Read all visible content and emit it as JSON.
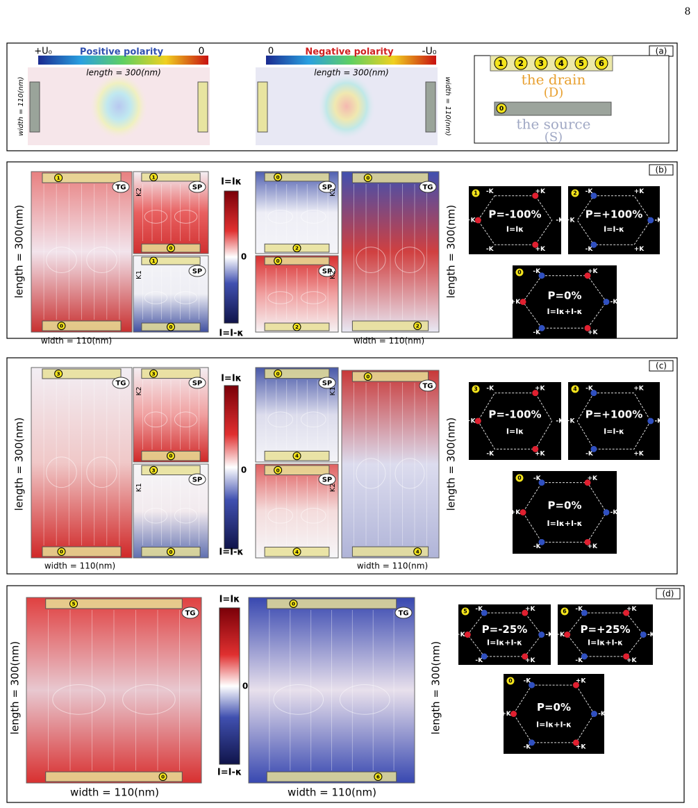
{
  "page_number": "8",
  "hex_vertex_labels": [
    "-K",
    "+K",
    "-K",
    "+K",
    "-K",
    "+K"
  ],
  "panel_a": {
    "label": "(a)",
    "positive": {
      "left": "+U₀",
      "title": "Positive polarity",
      "right": "0",
      "length": "length = 300(nm)",
      "width": "width = 110(nm)"
    },
    "negative": {
      "left": "0",
      "title": "Negative polarity",
      "right": "-U₀",
      "length": "length = 300(nm)",
      "width": "width = 110(nm)"
    },
    "legend": {
      "drain_contacts": [
        "1",
        "2",
        "3",
        "4",
        "5",
        "6"
      ],
      "drain": "the drain",
      "drain_abbr": "(D)",
      "source_contact": "0",
      "source": "the source",
      "source_abbr": "(S)"
    }
  },
  "panel_b": {
    "label": "(b)",
    "colorbar": {
      "top": "I=Iκ",
      "mid": "0",
      "bottom": "I=I-κ"
    },
    "length_labels": [
      "length = 300(nm)",
      "length = 300(nm)"
    ],
    "width_labels": [
      "width = 110(nm)",
      "width = 110(nm)"
    ],
    "fields": [
      {
        "top": "1",
        "bottom": "0",
        "tag": "TG",
        "colors": [
          "#e88080",
          "#f2e4ec",
          "#c83030"
        ]
      },
      {
        "top": "1",
        "bottom": "0",
        "tag": "SP",
        "k": "K2",
        "colors": [
          "#f4f0f4",
          "#e86060",
          "#d03030"
        ]
      },
      {
        "top": "1",
        "bottom": "0",
        "tag": "SP",
        "k": "K1",
        "colors": [
          "#f4f4f8",
          "#eeeef4",
          "#4050a0"
        ]
      },
      {
        "top": "0",
        "bottom": "2",
        "tag": "SP",
        "k": "K1",
        "colors": [
          "#5060b0",
          "#eeeef6",
          "#f4f4f8"
        ]
      },
      {
        "top": "0",
        "bottom": "2",
        "tag": "SP",
        "k": "K2",
        "colors": [
          "#d83030",
          "#f0a0a0",
          "#f6f2f4"
        ]
      },
      {
        "top": "0",
        "bottom": "2",
        "tag": "TG",
        "colors": [
          "#4050b0",
          "#d04040",
          "#e8e8f4"
        ]
      }
    ],
    "hexes": [
      {
        "contact": "1",
        "p": "P=-100%",
        "current": "I=Iκ",
        "dots": [
          null,
          "#e02030",
          null,
          "#e02030",
          null,
          "#e02030"
        ]
      },
      {
        "contact": "2",
        "p": "P=+100%",
        "current": "I=I-κ",
        "dots": [
          "#3050c0",
          null,
          "#3050c0",
          null,
          "#3050c0",
          null
        ]
      },
      {
        "contact": "0",
        "p": "P=0%",
        "current": "I=Iκ+I-κ",
        "dots": [
          "#3050c0",
          "#e02030",
          "#3050c0",
          "#e02030",
          "#3050c0",
          "#e02030"
        ]
      }
    ]
  },
  "panel_c": {
    "label": "(c)",
    "colorbar": {
      "top": "I=Iκ",
      "mid": "0",
      "bottom": "I=I-κ"
    },
    "length_labels": [
      "length = 300(nm)",
      "length = 300(nm)"
    ],
    "width_labels": [
      "width = 110(nm)",
      "width = 110(nm)"
    ],
    "fields": [
      {
        "top": "3",
        "bottom": "0",
        "tag": "TG",
        "colors": [
          "#f2eef4",
          "#f0c8c8",
          "#d02828"
        ]
      },
      {
        "top": "3",
        "bottom": "0",
        "tag": "SP",
        "k": "K2",
        "colors": [
          "#f4eef2",
          "#f0a0a0",
          "#d02828"
        ]
      },
      {
        "top": "3",
        "bottom": "0",
        "tag": "SP",
        "k": "K1",
        "colors": [
          "#f6f6f8",
          "#f2eaee",
          "#6070b0"
        ]
      },
      {
        "top": "0",
        "bottom": "4",
        "tag": "SP",
        "k": "K1",
        "colors": [
          "#4858a8",
          "#dcdcec",
          "#f4f4f8"
        ]
      },
      {
        "top": "0",
        "bottom": "4",
        "tag": "SP",
        "k": "K2",
        "colors": [
          "#e06060",
          "#f4dcdc",
          "#f6f6f8"
        ]
      },
      {
        "top": "0",
        "bottom": "4",
        "tag": "TG",
        "colors": [
          "#c83838",
          "#dcdcee",
          "#b0b4d8"
        ]
      }
    ],
    "hexes": [
      {
        "contact": "3",
        "p": "P=-100%",
        "current": "I=Iκ",
        "dots": [
          null,
          "#e02030",
          null,
          "#e02030",
          null,
          "#e02030"
        ]
      },
      {
        "contact": "4",
        "p": "P=+100%",
        "current": "I=I-κ",
        "dots": [
          "#3050c0",
          null,
          "#3050c0",
          null,
          "#3050c0",
          null
        ]
      },
      {
        "contact": "0",
        "p": "P=0%",
        "current": "I=Iκ+I-κ",
        "dots": [
          "#3050c0",
          "#e02030",
          "#3050c0",
          "#e02030",
          "#3050c0",
          "#e02030"
        ]
      }
    ]
  },
  "panel_d": {
    "label": "(d)",
    "colorbar": {
      "top": "I=Iκ",
      "mid": "0",
      "bottom": "I=I-κ"
    },
    "length_labels": [
      "length = 300(nm)",
      "length = 300(nm)"
    ],
    "width_labels": [
      "width = 110(nm)",
      "width = 110(nm)"
    ],
    "fields": [
      {
        "top": "5",
        "bottom": "0",
        "tag": "TG",
        "colors": [
          "#e04040",
          "#e8c8d0",
          "#d83030"
        ]
      },
      {
        "top": "0",
        "bottom": "6",
        "tag": "TG",
        "colors": [
          "#3848b0",
          "#e8e0ec",
          "#3848b0"
        ]
      }
    ],
    "hexes": [
      {
        "contact": "5",
        "p": "P=-25%",
        "current": "I=Iκ+I-κ",
        "dots": [
          "#3050c0",
          "#e02030",
          "#3050c0",
          "#e02030",
          "#3050c0",
          "#e02030"
        ]
      },
      {
        "contact": "6",
        "p": "P=+25%",
        "current": "I=Iκ+I-κ",
        "dots": [
          "#3050c0",
          "#e02030",
          "#3050c0",
          "#e02030",
          "#3050c0",
          "#e02030"
        ]
      },
      {
        "contact": "0",
        "p": "P=0%",
        "current": "I=Iκ+I-κ",
        "dots": [
          "#3050c0",
          "#e02030",
          "#3050c0",
          "#e02030",
          "#3050c0",
          "#e02030"
        ]
      }
    ]
  }
}
